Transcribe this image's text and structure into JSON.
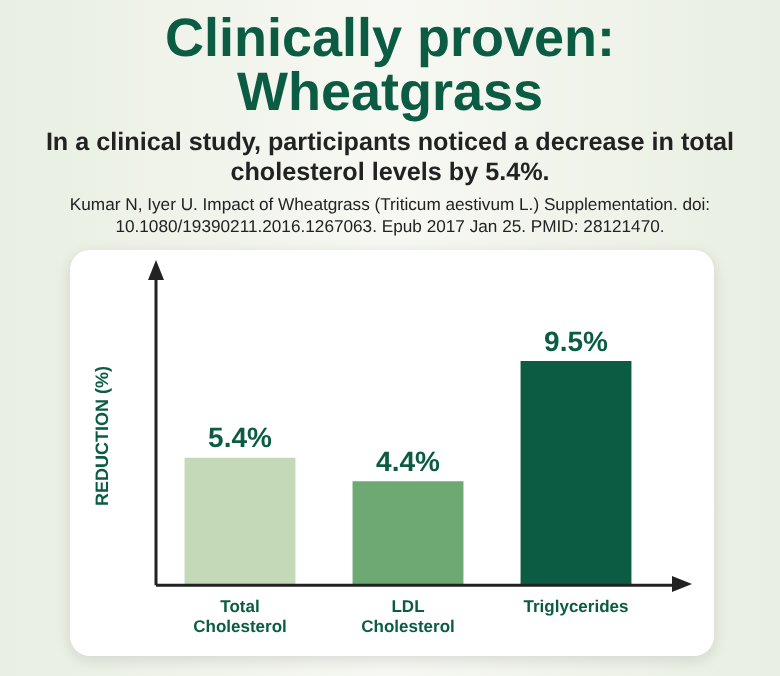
{
  "chart_data": {
    "type": "bar",
    "title": "Clinically proven: Wheatgrass",
    "subtitle": "In a clinical study, participants noticed a decrease in total cholesterol levels by 5.4%.",
    "annotations": [
      "Kumar N, Iyer U. Impact of Wheatgrass (Triticum aestivum L.) Supplementation. doi: 10.1080/19390211.2016.1267063. Epub 2017 Jan 25. PMID: 28121470."
    ],
    "ylabel": "REDUCTION (%)",
    "categories": [
      "Total Cholesterol",
      "LDL Cholesterol",
      "Triglycerides"
    ],
    "values": [
      5.4,
      4.4,
      9.5
    ],
    "colors": [
      "#c3d9b8",
      "#6ea872",
      "#0b5c43"
    ],
    "value_labels": [
      "5.4%",
      "4.4%",
      "9.5%"
    ],
    "relative": false,
    "grid": false,
    "legend": false
  }
}
